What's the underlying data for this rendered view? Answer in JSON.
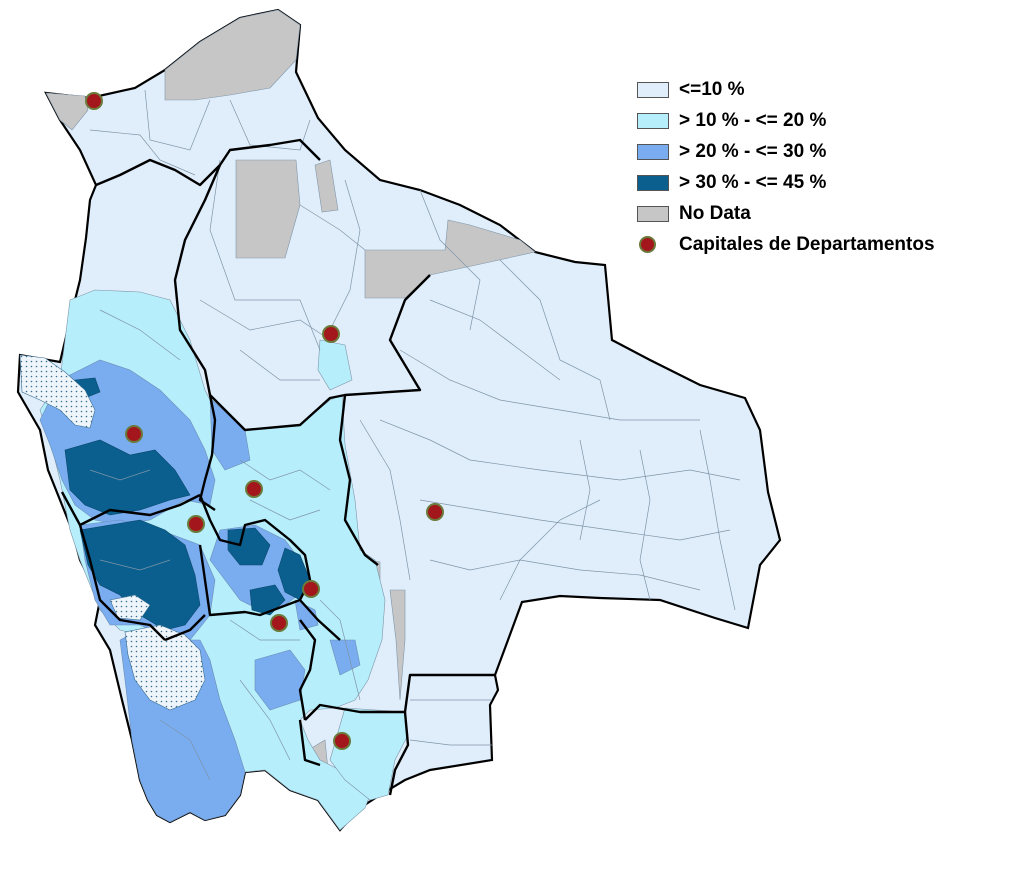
{
  "legend": {
    "items": [
      {
        "label": "<=10 %",
        "color": "#e0eefb",
        "icon": "swatch"
      },
      {
        "label": "> 10 % - <= 20 %",
        "color": "#b6eefb",
        "icon": "swatch"
      },
      {
        "label": "> 20 % - <= 30 %",
        "color": "#7aacf0",
        "icon": "swatch"
      },
      {
        "label": "> 30 % - <= 45 %",
        "color": "#0a5f8e",
        "icon": "swatch"
      },
      {
        "label": "No Data",
        "color": "#c6c6c6",
        "icon": "swatch"
      },
      {
        "label": "Capitales de Departamentos",
        "color": "#a3171c",
        "icon": "capital-dot-icon"
      }
    ]
  },
  "map": {
    "colors": {
      "low": "#e0eefb",
      "mid_low": "#b6eefb",
      "mid_high": "#7aacf0",
      "high": "#0a5f8e",
      "no_data": "#c6c6c6",
      "capital": "#a3171c",
      "border": "#000000",
      "municipal_line": "#7f95a8"
    }
  }
}
